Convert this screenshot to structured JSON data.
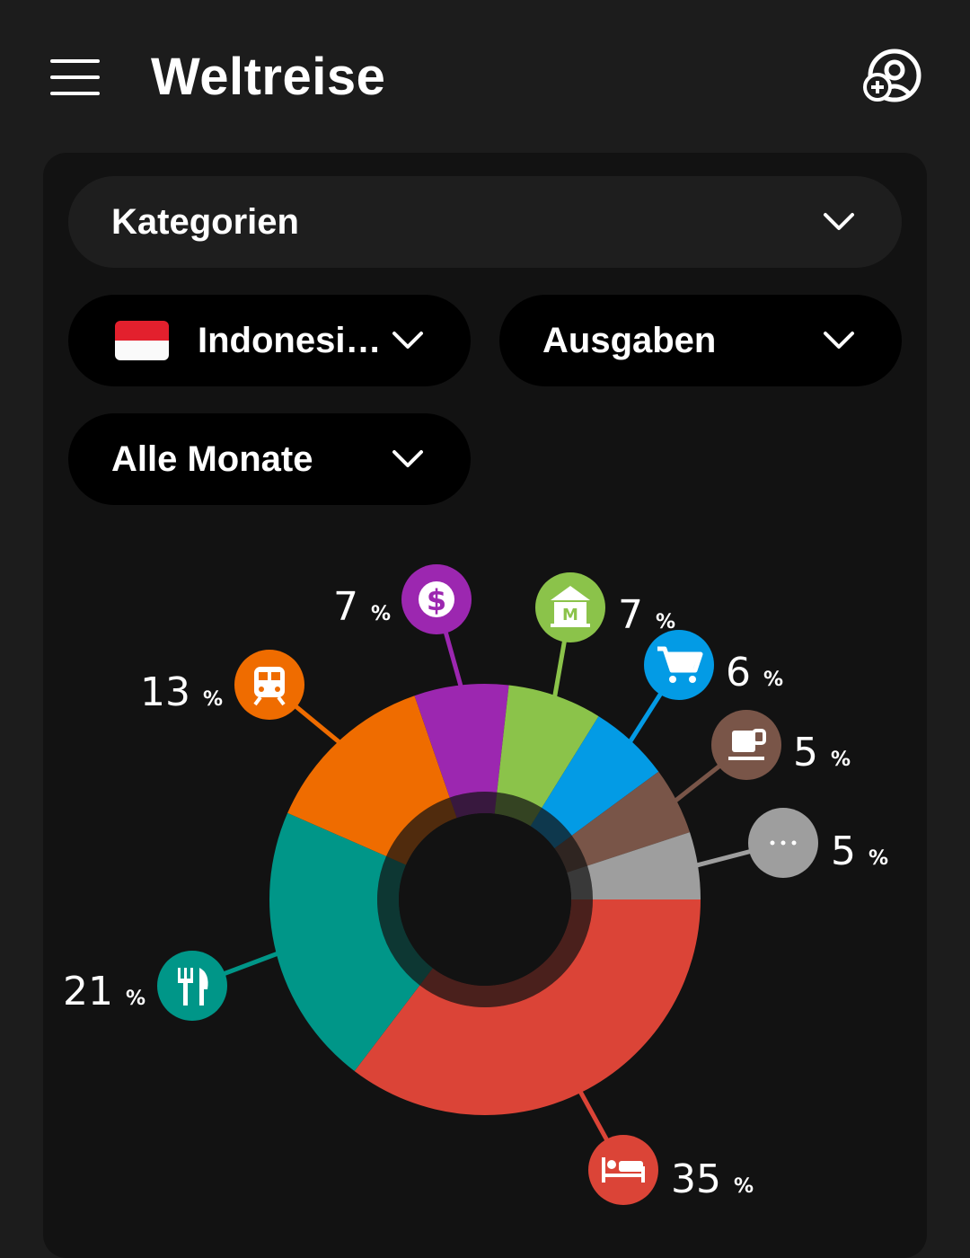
{
  "app": {
    "title": "Weltreise"
  },
  "filters": {
    "category_dropdown": "Kategorien",
    "country_dropdown": "Indonesi…",
    "type_dropdown": "Ausgaben",
    "period_dropdown": "Alle Monate"
  },
  "chart_data": {
    "type": "pie",
    "donut": true,
    "unit": "%",
    "slices": [
      {
        "category": "accommodation",
        "icon": "bed-icon",
        "value": 35,
        "color": "#db4437"
      },
      {
        "category": "food",
        "icon": "cutlery-icon",
        "value": 21,
        "color": "#009688"
      },
      {
        "category": "transport",
        "icon": "train-icon",
        "value": 13,
        "color": "#ef6c00"
      },
      {
        "category": "money",
        "icon": "dollar-icon",
        "value": 7,
        "color": "#9c27b0"
      },
      {
        "category": "sightseeing",
        "icon": "museum-icon",
        "value": 7,
        "color": "#8bc34a"
      },
      {
        "category": "shopping",
        "icon": "cart-icon",
        "value": 6,
        "color": "#039be5"
      },
      {
        "category": "drinks",
        "icon": "coffee-icon",
        "value": 5,
        "color": "#795548"
      },
      {
        "category": "other",
        "icon": "more-icon",
        "value": 5,
        "color": "#9e9e9e"
      }
    ]
  }
}
